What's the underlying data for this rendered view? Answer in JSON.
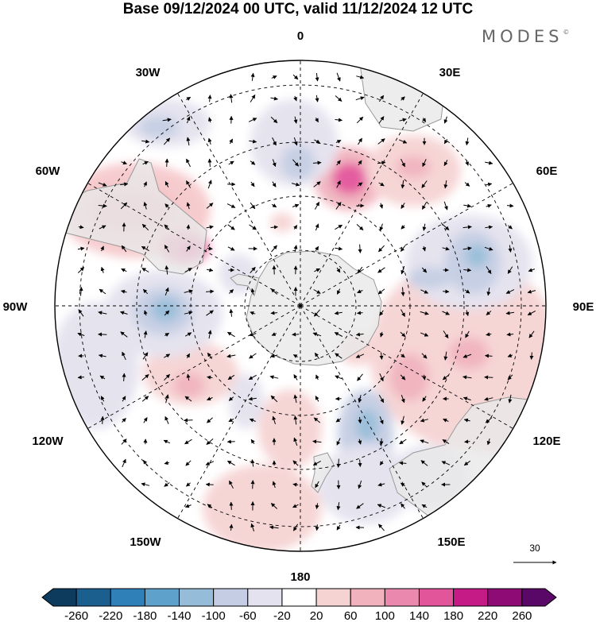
{
  "title": "Base 09/12/2024 00 UTC, valid 11/12/2024 12 UTC",
  "brand": "MODES",
  "brand_mark": "©",
  "projection": "south-polar-stereographic",
  "longitude_labels": [
    {
      "text": "0",
      "lon": 0
    },
    {
      "text": "30E",
      "lon": 30
    },
    {
      "text": "60E",
      "lon": 60
    },
    {
      "text": "90E",
      "lon": 90
    },
    {
      "text": "120E",
      "lon": 120
    },
    {
      "text": "150E",
      "lon": 150
    },
    {
      "text": "180",
      "lon": 180
    },
    {
      "text": "150W",
      "lon": -150
    },
    {
      "text": "120W",
      "lon": -120
    },
    {
      "text": "90W",
      "lon": -90
    },
    {
      "text": "60W",
      "lon": -60
    },
    {
      "text": "30W",
      "lon": -30
    }
  ],
  "reference_vector": {
    "label": "30"
  },
  "colorbar": {
    "labels": [
      "-260",
      "-220",
      "-180",
      "-140",
      "-100",
      "-60",
      "-20",
      "20",
      "60",
      "100",
      "140",
      "180",
      "220",
      "260"
    ],
    "colors": [
      "#0d3b5e",
      "#1b5f8f",
      "#2f7fb8",
      "#5ea2cc",
      "#95bcd9",
      "#c4cde3",
      "#e4e2ee",
      "#ffffff",
      "#f6d3d3",
      "#f1b2bd",
      "#ea89ad",
      "#e3559b",
      "#c41b86",
      "#8e0b75",
      "#5a0868"
    ]
  },
  "colors": {
    "land": "#e8e8e8",
    "land_outline": "#999999",
    "grid": "#000000"
  }
}
